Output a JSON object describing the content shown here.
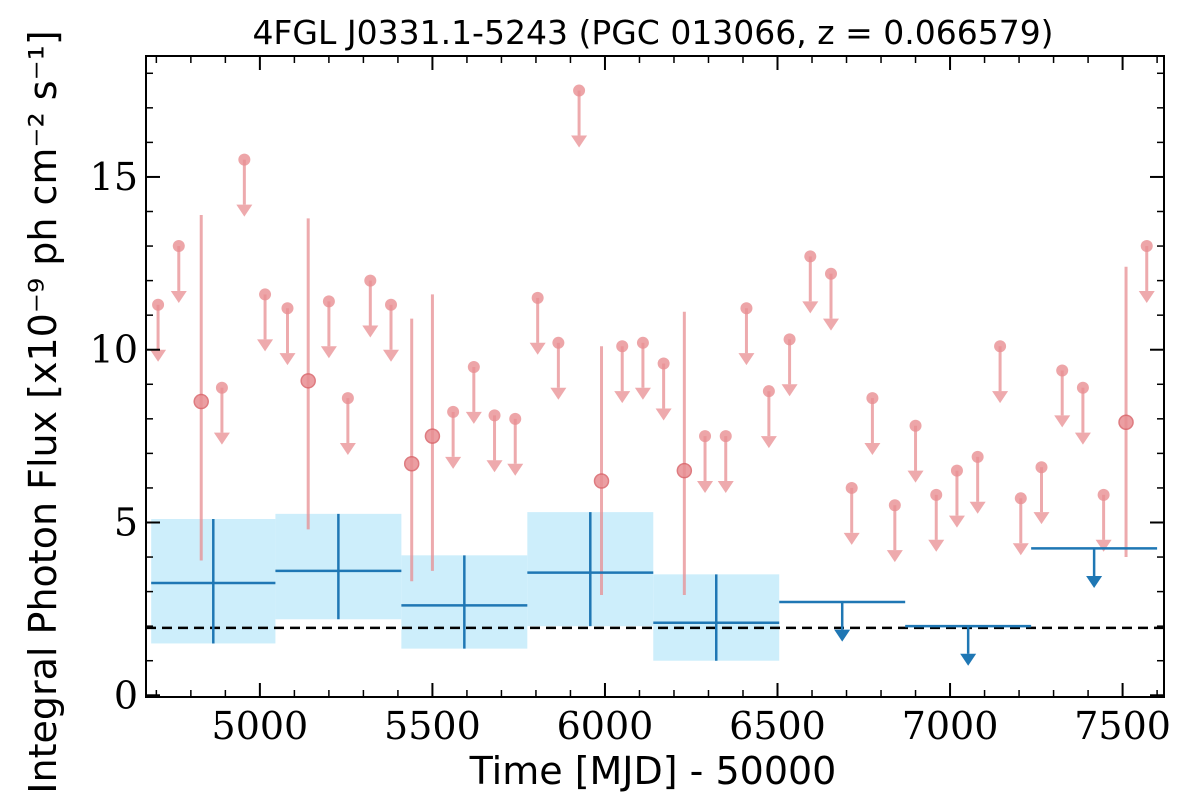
{
  "chart_data": {
    "type": "scatter",
    "title": "4FGL J0331.1-5243 (PGC 013066, z = 0.066579)",
    "xlabel": "Time [MJD] - 50000",
    "ylabel": "Integral Photon Flux [x10⁻⁹ ph cm⁻² s⁻¹]",
    "xlim": [
      4670,
      7620
    ],
    "ylim": [
      -0.05,
      18.5
    ],
    "x_ticks": [
      "5000",
      "5500",
      "6000",
      "6500",
      "7000",
      "7500"
    ],
    "y_ticks": [
      "0",
      "5",
      "10",
      "15"
    ],
    "reference_line_y": 1.95,
    "colors": {
      "short_bins": "#e88e92",
      "long_bins": "#1f77b4",
      "long_bins_band": "#cdeefb",
      "reference_line": "#000000"
    },
    "series": [
      {
        "cadence": "short_bins",
        "upper_limits": [
          {
            "x": 4705,
            "y": 11.3
          },
          {
            "x": 4765,
            "y": 13.0
          },
          {
            "x": 4890,
            "y": 8.9
          },
          {
            "x": 4955,
            "y": 15.5
          },
          {
            "x": 5015,
            "y": 11.6
          },
          {
            "x": 5080,
            "y": 11.2
          },
          {
            "x": 5200,
            "y": 11.4
          },
          {
            "x": 5255,
            "y": 8.6
          },
          {
            "x": 5320,
            "y": 12.0
          },
          {
            "x": 5380,
            "y": 11.3
          },
          {
            "x": 5560,
            "y": 8.2
          },
          {
            "x": 5620,
            "y": 9.5
          },
          {
            "x": 5680,
            "y": 8.1
          },
          {
            "x": 5740,
            "y": 8.0
          },
          {
            "x": 5805,
            "y": 11.5
          },
          {
            "x": 5865,
            "y": 10.2
          },
          {
            "x": 5925,
            "y": 17.5
          },
          {
            "x": 6050,
            "y": 10.1
          },
          {
            "x": 6110,
            "y": 10.2
          },
          {
            "x": 6170,
            "y": 9.6
          },
          {
            "x": 6290,
            "y": 7.5
          },
          {
            "x": 6350,
            "y": 7.5
          },
          {
            "x": 6410,
            "y": 11.2
          },
          {
            "x": 6475,
            "y": 8.8
          },
          {
            "x": 6535,
            "y": 10.3
          },
          {
            "x": 6595,
            "y": 12.7
          },
          {
            "x": 6655,
            "y": 12.2
          },
          {
            "x": 6715,
            "y": 6.0
          },
          {
            "x": 6775,
            "y": 8.6
          },
          {
            "x": 6840,
            "y": 5.5
          },
          {
            "x": 6900,
            "y": 7.8
          },
          {
            "x": 6960,
            "y": 5.8
          },
          {
            "x": 7020,
            "y": 6.5
          },
          {
            "x": 7080,
            "y": 6.9
          },
          {
            "x": 7145,
            "y": 10.1
          },
          {
            "x": 7205,
            "y": 5.7
          },
          {
            "x": 7265,
            "y": 6.6
          },
          {
            "x": 7325,
            "y": 9.4
          },
          {
            "x": 7385,
            "y": 8.9
          },
          {
            "x": 7445,
            "y": 5.8
          },
          {
            "x": 7570,
            "y": 13.0
          }
        ],
        "detections": [
          {
            "x": 4830,
            "y": 8.5,
            "err_low": 3.9,
            "err_high": 13.9
          },
          {
            "x": 5140,
            "y": 9.1,
            "err_low": 4.8,
            "err_high": 13.8
          },
          {
            "x": 5440,
            "y": 6.7,
            "err_low": 3.3,
            "err_high": 10.9
          },
          {
            "x": 5500,
            "y": 7.5,
            "err_low": 3.6,
            "err_high": 11.6
          },
          {
            "x": 5990,
            "y": 6.2,
            "err_low": 2.9,
            "err_high": 10.1
          },
          {
            "x": 6230,
            "y": 6.5,
            "err_low": 2.9,
            "err_high": 11.1
          },
          {
            "x": 7510,
            "y": 7.9,
            "err_low": 4.0,
            "err_high": 12.4
          }
        ]
      },
      {
        "cadence": "long_bins",
        "detections": [
          {
            "x_start": 4685,
            "x_end": 5045,
            "y": 3.25,
            "y_low": 1.5,
            "y_high": 5.1
          },
          {
            "x_start": 5045,
            "x_end": 5410,
            "y": 3.6,
            "y_low": 2.2,
            "y_high": 5.25
          },
          {
            "x_start": 5410,
            "x_end": 5775,
            "y": 2.6,
            "y_low": 1.35,
            "y_high": 4.05
          },
          {
            "x_start": 5775,
            "x_end": 6140,
            "y": 3.55,
            "y_low": 2.0,
            "y_high": 5.3
          },
          {
            "x_start": 6140,
            "x_end": 6505,
            "y": 2.1,
            "y_low": 1.0,
            "y_high": 3.5
          }
        ],
        "upper_limits": [
          {
            "x_start": 6505,
            "x_end": 6870,
            "y": 2.7
          },
          {
            "x_start": 6870,
            "x_end": 7235,
            "y": 2.0
          },
          {
            "x_start": 7235,
            "x_end": 7600,
            "y": 4.25
          }
        ]
      }
    ]
  }
}
